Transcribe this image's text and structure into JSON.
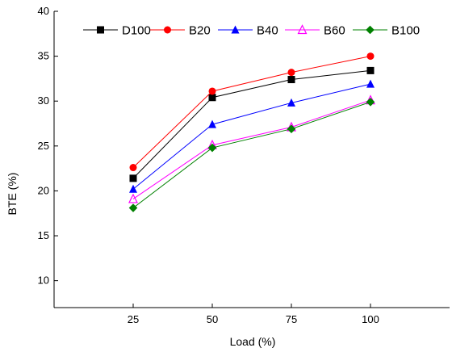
{
  "chart_data": {
    "type": "line",
    "xlabel": "Load (%)",
    "ylabel": "BTE (%)",
    "x": [
      25,
      50,
      75,
      100
    ],
    "xlim": [
      0,
      125
    ],
    "ylim": [
      7,
      40
    ],
    "yticks": [
      10,
      15,
      20,
      25,
      30,
      35,
      40
    ],
    "grid": false,
    "legend_position": "top",
    "series": [
      {
        "name": "D100",
        "color": "#000000",
        "marker": "square",
        "values": [
          21.4,
          30.4,
          32.4,
          33.4
        ]
      },
      {
        "name": "B20",
        "color": "#ff0000",
        "marker": "circle",
        "values": [
          22.6,
          31.1,
          33.2,
          35.0
        ]
      },
      {
        "name": "B40",
        "color": "#0000ff",
        "marker": "triangle",
        "values": [
          20.2,
          27.4,
          29.8,
          31.9
        ]
      },
      {
        "name": "B60",
        "color": "#ff00ff",
        "marker": "triangle-open",
        "values": [
          19.1,
          25.1,
          27.1,
          30.1
        ]
      },
      {
        "name": "B100",
        "color": "#008000",
        "marker": "diamond",
        "values": [
          18.1,
          24.8,
          26.9,
          29.9
        ]
      }
    ]
  }
}
